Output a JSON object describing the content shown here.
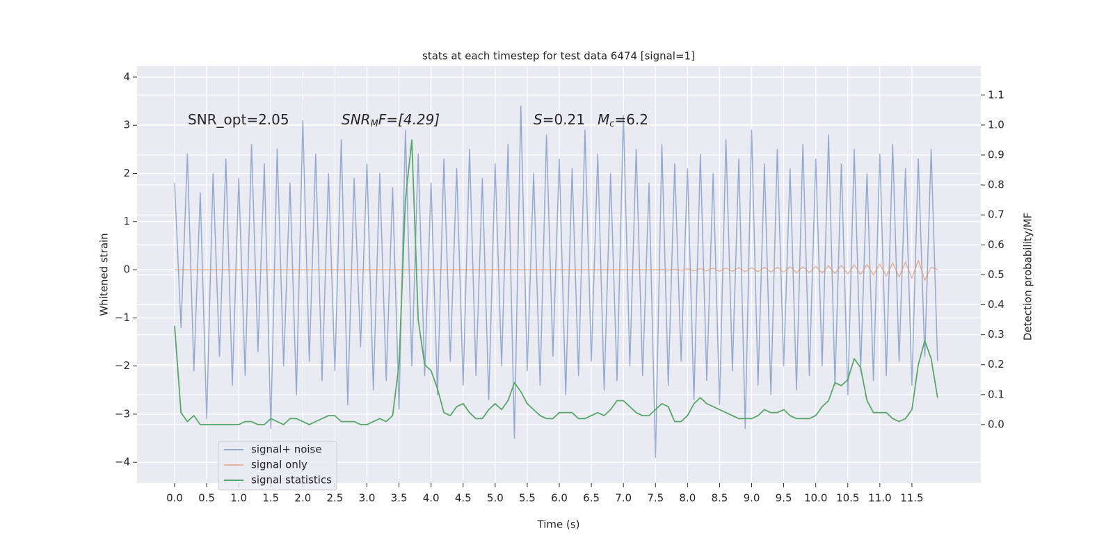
{
  "chart_data": {
    "type": "line",
    "title": "stats at each timestep for test data 6474 [signal=1]",
    "xlabel": "Time (s)",
    "ylabel": "Whitened strain",
    "y2label": "Detection probability/MF",
    "annotations": [
      [
        "SNR_opt=2.05"
      ],
      [
        "SNR",
        "M",
        "F=[4.29]"
      ],
      [
        "S",
        "=0.21"
      ],
      [
        "M",
        "c",
        "=6.2"
      ]
    ],
    "grid": true,
    "legend": "lower left",
    "xlim": [
      -0.586,
      12.575
    ],
    "ylim": [
      -4.43,
      4.23
    ],
    "y2lim": [
      -0.195,
      1.197
    ],
    "xticks": [
      {
        "value": 0,
        "label": "0.0"
      },
      0.5,
      {
        "value": 1,
        "label": "1.0"
      },
      1.5,
      {
        "value": 2,
        "label": "2.0"
      },
      2.5,
      {
        "value": 3,
        "label": "3.0"
      },
      3.5,
      {
        "value": 4,
        "label": "4.0"
      },
      4.5,
      {
        "value": 5,
        "label": "5.0"
      },
      5.5,
      {
        "value": 6,
        "label": "6.0"
      },
      6.5,
      {
        "value": 7,
        "label": "7.0"
      },
      7.5,
      {
        "value": 8,
        "label": "8.0"
      },
      8.5,
      {
        "value": 9,
        "label": "9.0"
      },
      9.5,
      {
        "value": 10,
        "label": "10.0"
      },
      10.5,
      {
        "value": 11,
        "label": "11.0"
      },
      11.5
    ],
    "yticks": [
      {
        "value": -4,
        "label": "−4"
      },
      {
        "value": -3,
        "label": "−3"
      },
      {
        "value": -2,
        "label": "−2"
      },
      {
        "value": -1,
        "label": "−1"
      },
      0,
      1,
      2,
      3,
      4
    ],
    "y2ticks": [
      {
        "value": 0,
        "label": "0.0"
      },
      0.1,
      0.2,
      0.3,
      0.4,
      0.5,
      0.6,
      0.7,
      0.8,
      0.9,
      {
        "value": 1,
        "label": "1.0"
      },
      1.1
    ],
    "x": [
      0,
      0.1,
      0.2,
      0.3,
      0.4,
      0.5,
      0.6,
      0.7,
      0.8,
      0.9,
      1,
      1.1,
      1.2,
      1.3,
      1.4,
      1.5,
      1.6,
      1.7,
      1.8,
      1.9,
      2,
      2.1,
      2.2,
      2.3,
      2.4,
      2.5,
      2.6,
      2.7,
      2.8,
      2.9,
      3,
      3.1,
      3.2,
      3.3,
      3.4,
      3.5,
      3.6,
      3.7,
      3.8,
      3.9,
      4,
      4.1,
      4.2,
      4.3,
      4.4,
      4.5,
      4.6,
      4.7,
      4.8,
      4.9,
      5,
      5.1,
      5.2,
      5.3,
      5.4,
      5.5,
      5.6,
      5.7,
      5.8,
      5.9,
      6,
      6.1,
      6.2,
      6.3,
      6.4,
      6.5,
      6.6,
      6.7,
      6.8,
      6.9,
      7,
      7.1,
      7.2,
      7.3,
      7.4,
      7.5,
      7.6,
      7.7,
      7.8,
      7.9,
      8,
      8.1,
      8.2,
      8.3,
      8.4,
      8.5,
      8.6,
      8.7,
      8.8,
      8.9,
      9,
      9.1,
      9.2,
      9.3,
      9.4,
      9.5,
      9.6,
      9.7,
      9.8,
      9.9,
      10,
      10.1,
      10.2,
      10.3,
      10.4,
      10.5,
      10.6,
      10.7,
      10.8,
      10.9,
      11,
      11.1,
      11.2,
      11.3,
      11.4,
      11.5,
      11.6,
      11.7,
      11.8,
      11.9
    ],
    "series": [
      {
        "name": "signal+ noise",
        "color": "#4c72b0",
        "values": [
          1.8,
          -1.2,
          2.4,
          -2.1,
          1.6,
          -3.1,
          2.0,
          -1.8,
          2.3,
          -2.4,
          1.9,
          -2.2,
          2.6,
          -1.7,
          2.2,
          -3.3,
          2.5,
          -2.0,
          1.8,
          -2.6,
          3.1,
          -1.9,
          2.4,
          -2.3,
          2.0,
          -2.1,
          2.7,
          -2.8,
          1.9,
          -1.6,
          2.2,
          -2.5,
          2.0,
          -2.3,
          1.7,
          -2.9,
          2.9,
          -2.0,
          2.4,
          -2.2,
          1.8,
          -2.6,
          2.3,
          -1.9,
          2.1,
          -2.4,
          2.5,
          -2.2,
          1.9,
          -2.7,
          2.2,
          -2.0,
          2.6,
          -3.5,
          3.4,
          -2.1,
          2.0,
          -2.4,
          2.8,
          -1.8,
          2.3,
          -2.6,
          2.1,
          -2.2,
          2.9,
          -1.9,
          2.4,
          -2.5,
          2.0,
          -2.3,
          3.2,
          -2.0,
          2.5,
          -2.2,
          1.8,
          -3.9,
          2.6,
          -2.4,
          2.2,
          -1.9,
          2.1,
          -2.7,
          2.4,
          -2.3,
          2.0,
          -2.8,
          2.7,
          -2.1,
          2.3,
          -3.3,
          2.9,
          -2.4,
          2.2,
          -2.6,
          2.5,
          -2.0,
          2.1,
          -2.5,
          2.6,
          -2.2,
          2.3,
          -2.0,
          2.8,
          -2.4,
          2.2,
          -2.6,
          2.5,
          -2.1,
          2.0,
          -2.3,
          2.4,
          -2.2,
          2.6,
          -1.9,
          2.1,
          -2.4,
          2.3,
          -1.8,
          2.5,
          -1.9
        ]
      },
      {
        "name": "signal only",
        "color": "#dd8452",
        "values": [
          0,
          0,
          0,
          0,
          0,
          0,
          0,
          0,
          0,
          0,
          0,
          0,
          0,
          0,
          0,
          0,
          0,
          0,
          0,
          0,
          0,
          0,
          0,
          0,
          0,
          0,
          0,
          0,
          0,
          0,
          0,
          0,
          0,
          0,
          0,
          0,
          0,
          0,
          0,
          0,
          0,
          0,
          0,
          0,
          0,
          0,
          0,
          0,
          0,
          0,
          0,
          0,
          0,
          0,
          0,
          0,
          0,
          0,
          0,
          0,
          0,
          0,
          0,
          0,
          0,
          0,
          0,
          0,
          0,
          0,
          0,
          0,
          0,
          0,
          0,
          0,
          0.01,
          -0.01,
          0.01,
          -0.01,
          0.02,
          -0.02,
          0.02,
          -0.02,
          0.03,
          -0.03,
          0.03,
          -0.03,
          0.04,
          -0.04,
          0.04,
          -0.04,
          0.05,
          -0.05,
          0.05,
          -0.05,
          0.06,
          -0.06,
          0.06,
          -0.06,
          0.07,
          -0.07,
          0.08,
          -0.08,
          0.09,
          -0.09,
          0.1,
          -0.1,
          0.11,
          -0.11,
          0.12,
          -0.13,
          0.14,
          -0.15,
          0.16,
          -0.18,
          0.2,
          -0.22,
          0.05,
          0
        ]
      },
      {
        "name": "signal statistics",
        "color": "#55a868",
        "axis": "y2",
        "values": [
          0.33,
          0.04,
          0.01,
          0.03,
          0,
          0,
          0,
          0,
          0,
          0,
          0,
          0.01,
          0.01,
          0,
          0,
          0.02,
          0.01,
          0,
          0.02,
          0.02,
          0.01,
          0,
          0.01,
          0.02,
          0.03,
          0.03,
          0.01,
          0.01,
          0.01,
          0,
          0,
          0.01,
          0.02,
          0.01,
          0.03,
          0.2,
          0.75,
          0.95,
          0.35,
          0.2,
          0.18,
          0.12,
          0.04,
          0.03,
          0.06,
          0.07,
          0.04,
          0.02,
          0.02,
          0.05,
          0.07,
          0.05,
          0.08,
          0.14,
          0.11,
          0.07,
          0.05,
          0.03,
          0.02,
          0.02,
          0.04,
          0.04,
          0.04,
          0.02,
          0.02,
          0.03,
          0.04,
          0.03,
          0.05,
          0.08,
          0.08,
          0.06,
          0.04,
          0.03,
          0.03,
          0.05,
          0.07,
          0.06,
          0.01,
          0.01,
          0.03,
          0.07,
          0.09,
          0.07,
          0.06,
          0.05,
          0.04,
          0.03,
          0.02,
          0.02,
          0.02,
          0.03,
          0.05,
          0.04,
          0.04,
          0.05,
          0.03,
          0.02,
          0.02,
          0.02,
          0.03,
          0.06,
          0.08,
          0.14,
          0.13,
          0.15,
          0.22,
          0.19,
          0.08,
          0.04,
          0.04,
          0.04,
          0.02,
          0.01,
          0.02,
          0.05,
          0.2,
          0.28,
          0.22,
          0.09
        ]
      }
    ]
  }
}
